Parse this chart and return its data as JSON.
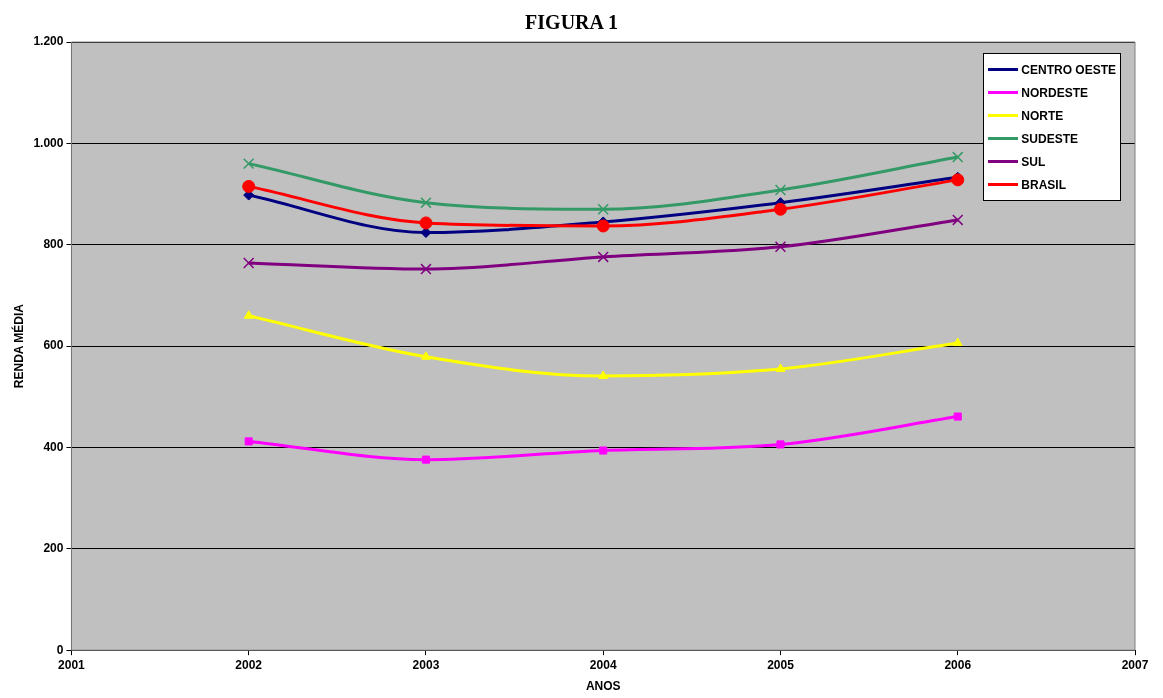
{
  "chart_data": {
    "type": "line",
    "title": "FIGURA 1",
    "xlabel": "ANOS",
    "ylabel": "RENDA MÉDIA",
    "x": [
      2002,
      2003,
      2004,
      2005,
      2006
    ],
    "xlim": [
      2001,
      2007
    ],
    "xticks": [
      2001,
      2002,
      2003,
      2004,
      2005,
      2006,
      2007
    ],
    "ylim": [
      0,
      1200
    ],
    "yticks": [
      0,
      200,
      400,
      600,
      800,
      {
        "value": 1000,
        "label": "1.000"
      },
      {
        "value": 1200,
        "label": "1.200"
      }
    ],
    "grid": "y",
    "legend": "top right",
    "series": [
      {
        "name": "CENTRO OESTE",
        "color": "#000080",
        "marker": "diamond",
        "values": [
          898,
          824,
          845,
          883,
          933
        ]
      },
      {
        "name": "NORDESTE",
        "color": "#ff00ff",
        "marker": "square",
        "values": [
          412,
          376,
          394,
          406,
          461
        ]
      },
      {
        "name": "NORTE",
        "color": "#ffff00",
        "marker": "triangle",
        "values": [
          660,
          579,
          541,
          555,
          606
        ]
      },
      {
        "name": "SUDESTE",
        "color": "#339966",
        "marker": "cross",
        "values": [
          960,
          883,
          870,
          908,
          973
        ]
      },
      {
        "name": "SUL",
        "color": "#800080",
        "marker": "cross",
        "values": [
          764,
          752,
          776,
          796,
          849
        ]
      },
      {
        "name": "BRASIL",
        "color": "#ff0000",
        "marker": "circle",
        "values": [
          915,
          843,
          837,
          870,
          928
        ]
      }
    ]
  }
}
